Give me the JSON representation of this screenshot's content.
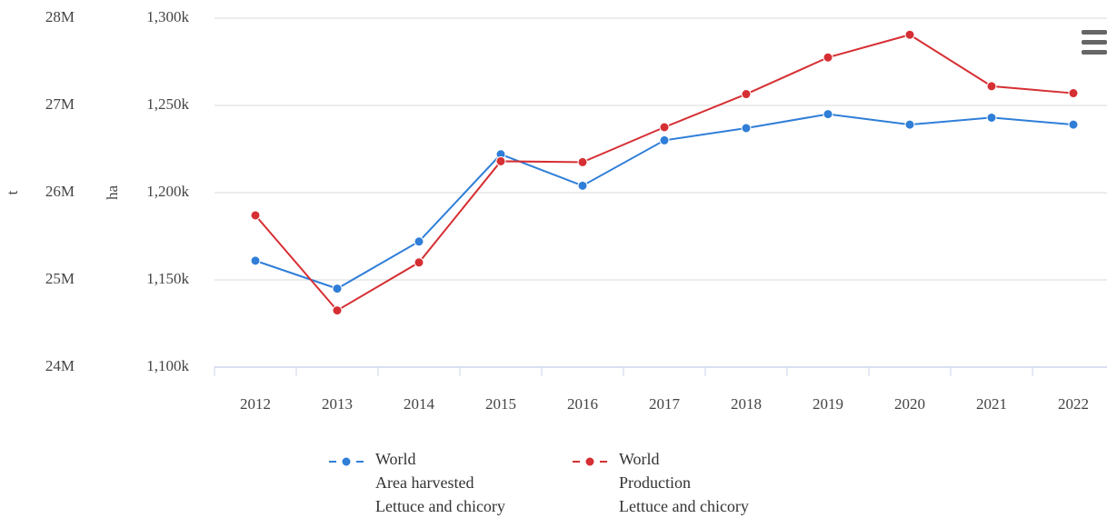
{
  "chart_data": {
    "type": "line",
    "categories": [
      "2012",
      "2013",
      "2014",
      "2015",
      "2016",
      "2017",
      "2018",
      "2019",
      "2020",
      "2021",
      "2022"
    ],
    "series": [
      {
        "name": "World\nArea harvested\nLettuce and chicory",
        "color": "#2f7ed8",
        "values": [
          1161000,
          1145000,
          1172000,
          1222000,
          1204000,
          1230000,
          1237000,
          1245000,
          1239000,
          1243000,
          1239000
        ]
      },
      {
        "name": "World\nProduction\nLettuce and chicory",
        "color": "#d62f33",
        "axis": "y2",
        "values": [
          25740000,
          24650000,
          25200000,
          26360000,
          26350000,
          26750000,
          27130000,
          27550000,
          27810000,
          27220000,
          27140000
        ]
      }
    ],
    "ylabel": "ha",
    "y2label": "t",
    "ylim": [
      1100000,
      1300000
    ],
    "yticks": [
      {
        "value": 1100000,
        "label": "1,100k"
      },
      {
        "value": 1150000,
        "label": "1,150k"
      },
      {
        "value": 1200000,
        "label": "1,200k"
      },
      {
        "value": 1250000,
        "label": "1,250k"
      },
      {
        "value": 1300000,
        "label": "1,300k"
      }
    ],
    "y2lim": [
      24000000,
      28000000
    ],
    "y2ticks": [
      {
        "value": 24000000,
        "label": "24M"
      },
      {
        "value": 25000000,
        "label": "25M"
      },
      {
        "value": 26000000,
        "label": "26M"
      },
      {
        "value": 27000000,
        "label": "27M"
      },
      {
        "value": 28000000,
        "label": "28M"
      }
    ],
    "grid": true
  }
}
